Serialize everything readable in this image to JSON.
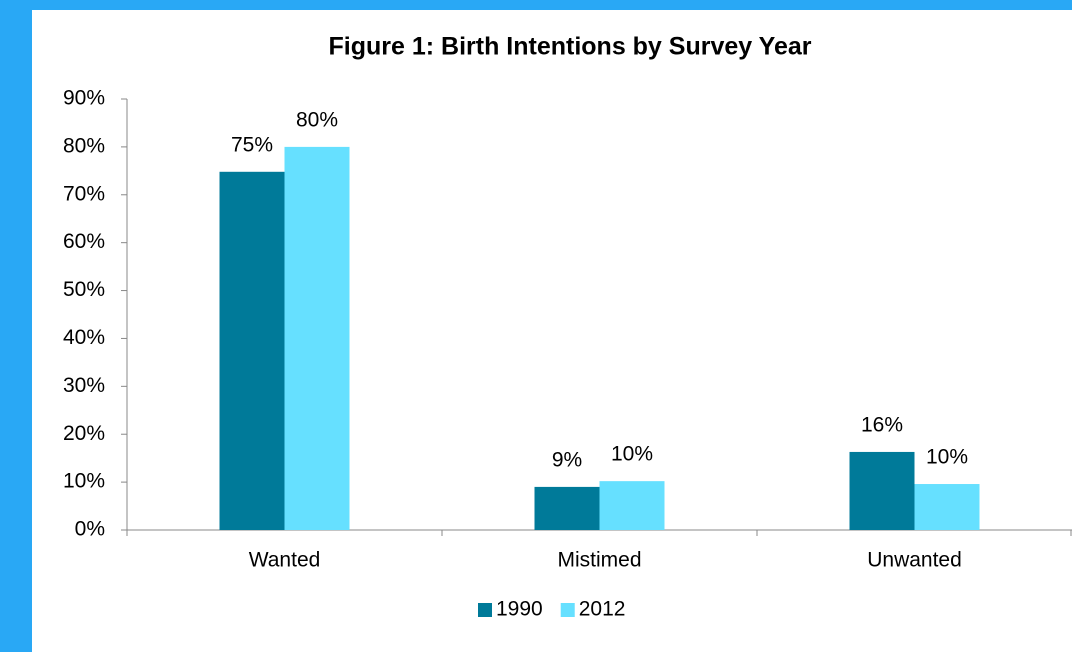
{
  "chart_data": {
    "type": "bar",
    "title": "Figure 1: Birth Intentions by Survey Year",
    "categories": [
      "Wanted",
      "Mistimed",
      "Unwanted"
    ],
    "series": [
      {
        "name": "1990",
        "color": "#007a99",
        "values": [
          74.8,
          9,
          16.3
        ],
        "value_labels": [
          "75%",
          "9%",
          "16%"
        ]
      },
      {
        "name": "2012",
        "color": "#66e0ff",
        "values": [
          80,
          10.2,
          9.6
        ],
        "value_labels": [
          "80%",
          "10%",
          "10%"
        ]
      }
    ],
    "ylim": [
      0,
      90
    ],
    "yticks": [
      {
        "value": 0,
        "label": "0%"
      },
      {
        "value": 10,
        "label": "10%"
      },
      {
        "value": 20,
        "label": "20%"
      },
      {
        "value": 30,
        "label": "30%"
      },
      {
        "value": 40,
        "label": "40%"
      },
      {
        "value": 50,
        "label": "50%"
      },
      {
        "value": 60,
        "label": "60%"
      },
      {
        "value": 70,
        "label": "70%"
      },
      {
        "value": 80,
        "label": "80%"
      },
      {
        "value": 90,
        "label": "90%"
      }
    ],
    "grid": false,
    "legend": "bottom"
  }
}
